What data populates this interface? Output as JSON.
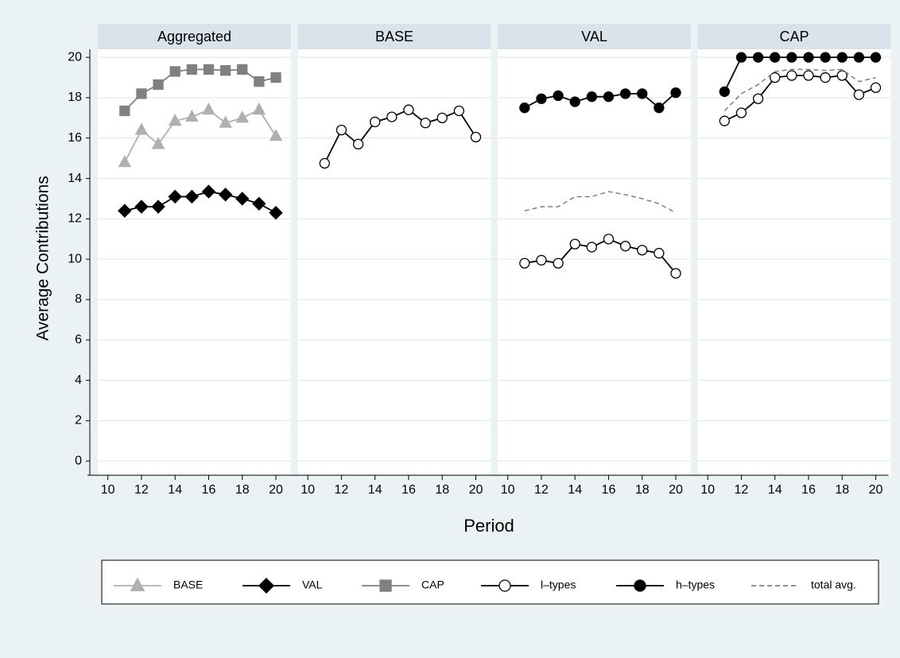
{
  "chart_data": [
    {
      "type": "line",
      "title": "Aggregated",
      "x_label": "Period",
      "y_label": "Average Contributions",
      "x": [
        11,
        12,
        13,
        14,
        15,
        16,
        17,
        18,
        19,
        20
      ],
      "xlim": [
        9.4,
        20.9
      ],
      "xticks": [
        10,
        12,
        14,
        16,
        18,
        20
      ],
      "ylim": [
        -0.7,
        20.4
      ],
      "yticks": [
        0,
        2,
        4,
        6,
        8,
        10,
        12,
        14,
        16,
        18,
        20
      ],
      "grid": true,
      "series": [
        {
          "name": "BASE",
          "color": "#b0b0b0",
          "marker": "triangle",
          "marker_fill": "#b0b0b0",
          "dashed": false,
          "values": [
            14.8,
            16.4,
            15.7,
            16.85,
            17.05,
            17.4,
            16.75,
            17.0,
            17.4,
            16.1
          ]
        },
        {
          "name": "VAL",
          "color": "#000000",
          "marker": "diamond",
          "marker_fill": "#000000",
          "dashed": false,
          "values": [
            12.4,
            12.6,
            12.6,
            13.1,
            13.1,
            13.35,
            13.2,
            13.0,
            12.75,
            12.3
          ]
        },
        {
          "name": "CAP",
          "color": "#808080",
          "marker": "square",
          "marker_fill": "#808080",
          "dashed": false,
          "values": [
            17.35,
            18.2,
            18.65,
            19.3,
            19.4,
            19.4,
            19.35,
            19.4,
            18.8,
            19.0
          ]
        }
      ]
    },
    {
      "type": "line",
      "title": "BASE",
      "x": [
        11,
        12,
        13,
        14,
        15,
        16,
        17,
        18,
        19,
        20
      ],
      "xlim": [
        9.4,
        20.9
      ],
      "xticks": [
        10,
        12,
        14,
        16,
        18,
        20
      ],
      "ylim": [
        -0.7,
        20.4
      ],
      "yticks": [
        0,
        2,
        4,
        6,
        8,
        10,
        12,
        14,
        16,
        18,
        20
      ],
      "grid": true,
      "series": [
        {
          "name": "l–types",
          "color": "#000000",
          "marker": "circle",
          "marker_fill": "#ffffff",
          "dashed": false,
          "values": [
            14.75,
            16.4,
            15.7,
            16.8,
            17.05,
            17.4,
            16.75,
            17.0,
            17.35,
            16.05
          ]
        }
      ]
    },
    {
      "type": "line",
      "title": "VAL",
      "x": [
        11,
        12,
        13,
        14,
        15,
        16,
        17,
        18,
        19,
        20
      ],
      "xlim": [
        9.4,
        20.9
      ],
      "xticks": [
        10,
        12,
        14,
        16,
        18,
        20
      ],
      "ylim": [
        -0.7,
        20.4
      ],
      "yticks": [
        0,
        2,
        4,
        6,
        8,
        10,
        12,
        14,
        16,
        18,
        20
      ],
      "grid": true,
      "series": [
        {
          "name": "l–types",
          "color": "#000000",
          "marker": "circle",
          "marker_fill": "#ffffff",
          "dashed": false,
          "values": [
            9.8,
            9.95,
            9.8,
            10.75,
            10.6,
            11.0,
            10.65,
            10.45,
            10.3,
            9.3
          ]
        },
        {
          "name": "h–types",
          "color": "#000000",
          "marker": "circle",
          "marker_fill": "#000000",
          "dashed": false,
          "values": [
            17.5,
            17.95,
            18.1,
            17.8,
            18.05,
            18.05,
            18.2,
            18.2,
            17.5,
            18.25
          ]
        },
        {
          "name": "total avg.",
          "color": "#808080",
          "marker": "none",
          "marker_fill": "#808080",
          "dashed": true,
          "values": [
            12.4,
            12.6,
            12.6,
            13.1,
            13.1,
            13.35,
            13.2,
            13.0,
            12.75,
            12.3
          ]
        }
      ]
    },
    {
      "type": "line",
      "title": "CAP",
      "x": [
        11,
        12,
        13,
        14,
        15,
        16,
        17,
        18,
        19,
        20
      ],
      "xlim": [
        9.4,
        20.9
      ],
      "xticks": [
        10,
        12,
        14,
        16,
        18,
        20
      ],
      "ylim": [
        -0.7,
        20.4
      ],
      "yticks": [
        0,
        2,
        4,
        6,
        8,
        10,
        12,
        14,
        16,
        18,
        20
      ],
      "grid": true,
      "series": [
        {
          "name": "l–types",
          "color": "#000000",
          "marker": "circle",
          "marker_fill": "#ffffff",
          "dashed": false,
          "values": [
            16.85,
            17.25,
            17.95,
            19.0,
            19.1,
            19.1,
            19.0,
            19.1,
            18.15,
            18.5
          ]
        },
        {
          "name": "h–types",
          "color": "#000000",
          "marker": "circle",
          "marker_fill": "#000000",
          "dashed": false,
          "values": [
            18.3,
            20,
            20,
            20,
            20,
            20,
            20,
            20,
            20,
            20
          ]
        },
        {
          "name": "total avg.",
          "color": "#808080",
          "marker": "none",
          "marker_fill": "#808080",
          "dashed": true,
          "values": [
            17.35,
            18.2,
            18.65,
            19.3,
            19.4,
            19.4,
            19.35,
            19.4,
            18.8,
            19.0
          ]
        }
      ]
    }
  ]
}
